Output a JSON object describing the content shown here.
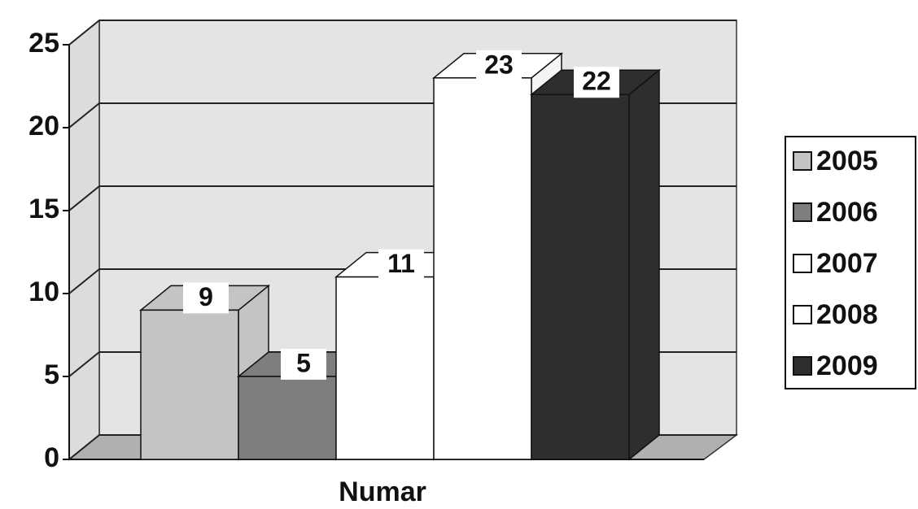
{
  "chart_data": {
    "type": "bar3d",
    "categories": [
      "Numar"
    ],
    "series": [
      {
        "name": "2005",
        "color": "#c4c4c4",
        "values": [
          9
        ]
      },
      {
        "name": "2006",
        "color": "#7e7e7e",
        "values": [
          5
        ]
      },
      {
        "name": "2007",
        "color": "#ffffff",
        "values": [
          11
        ]
      },
      {
        "name": "2008",
        "color": "#ffffff",
        "values": [
          23
        ]
      },
      {
        "name": "2009",
        "color": "#2e2e2e",
        "values": [
          22
        ]
      }
    ],
    "ylim": [
      0,
      25
    ],
    "yticks": [
      0,
      5,
      10,
      15,
      20,
      25
    ],
    "grid": true,
    "legend": "right"
  }
}
